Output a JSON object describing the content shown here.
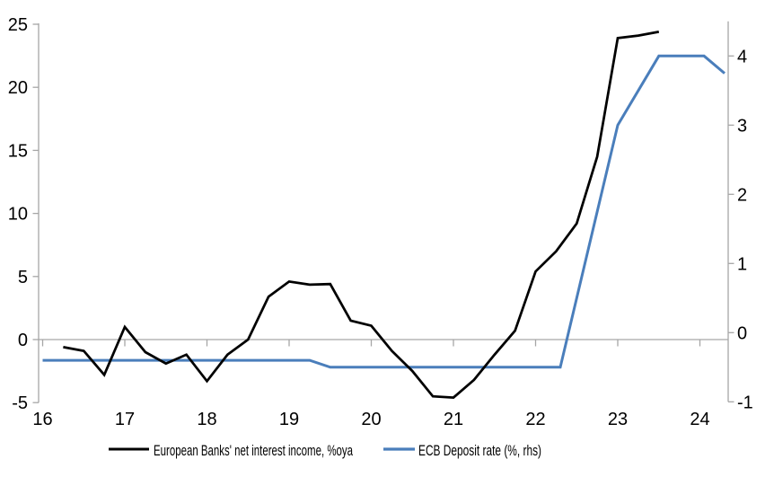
{
  "chart_data": {
    "type": "line",
    "title": "",
    "grid": "horizontal zero line only",
    "legend_position": "bottom-center",
    "x_axis": {
      "tick_labels": [
        "16",
        "17",
        "18",
        "19",
        "20",
        "21",
        "22",
        "23",
        "24"
      ],
      "tick_values": [
        16,
        17,
        18,
        19,
        20,
        21,
        22,
        23,
        24
      ],
      "range": [
        16,
        24.35
      ],
      "units": "year (20xx)"
    },
    "left_axis": {
      "tick_labels": [
        "25",
        "20",
        "15",
        "10",
        "5",
        "0",
        "-5"
      ],
      "tick_values": [
        25,
        20,
        15,
        10,
        5,
        0,
        -5
      ],
      "range": [
        -5,
        25
      ]
    },
    "right_axis": {
      "tick_labels": [
        "4",
        "3",
        "2",
        "1",
        "0",
        "-1"
      ],
      "tick_values": [
        4,
        3,
        2,
        1,
        0,
        -1
      ],
      "range": [
        -1,
        4.5
      ]
    },
    "series": [
      {
        "id": "european-banks-nii",
        "name": "European Banks' net interest income, %oya",
        "axis": "left",
        "color": "#000000",
        "stroke_width": 2.75,
        "points": [
          [
            16.25,
            -0.6
          ],
          [
            16.5,
            -0.9
          ],
          [
            16.75,
            -2.8
          ],
          [
            17.0,
            1.0
          ],
          [
            17.25,
            -1.0
          ],
          [
            17.5,
            -1.9
          ],
          [
            17.75,
            -1.2
          ],
          [
            18.0,
            -3.3
          ],
          [
            18.25,
            -1.2
          ],
          [
            18.5,
            0.0
          ],
          [
            18.75,
            3.4
          ],
          [
            19.0,
            4.6
          ],
          [
            19.25,
            4.35
          ],
          [
            19.5,
            4.4
          ],
          [
            19.75,
            1.5
          ],
          [
            20.0,
            1.1
          ],
          [
            20.25,
            -0.9
          ],
          [
            20.5,
            -2.5
          ],
          [
            20.75,
            -4.5
          ],
          [
            21.0,
            -4.6
          ],
          [
            21.25,
            -3.2
          ],
          [
            21.5,
            -1.2
          ],
          [
            21.75,
            0.7
          ],
          [
            22.0,
            5.4
          ],
          [
            22.25,
            7.0
          ],
          [
            22.5,
            9.2
          ],
          [
            22.75,
            14.5
          ],
          [
            23.0,
            23.9
          ],
          [
            23.25,
            24.1
          ],
          [
            23.5,
            24.4
          ]
        ]
      },
      {
        "id": "ecb-deposit-rate",
        "name": "ECB Deposit rate (%, rhs)",
        "axis": "right",
        "color": "#4a7ebb",
        "stroke_width": 3,
        "points": [
          [
            16.0,
            -0.4
          ],
          [
            19.25,
            -0.4
          ],
          [
            19.5,
            -0.5
          ],
          [
            22.3,
            -0.5
          ],
          [
            23.0,
            3.0
          ],
          [
            23.5,
            4.0
          ],
          [
            24.05,
            4.0
          ],
          [
            24.3,
            3.75
          ]
        ]
      }
    ]
  },
  "colors": {
    "background": "#ffffff",
    "axis_line": "#a6a6a6",
    "zero_gridline": "#a6a6a6",
    "tick_text": "#000000"
  }
}
